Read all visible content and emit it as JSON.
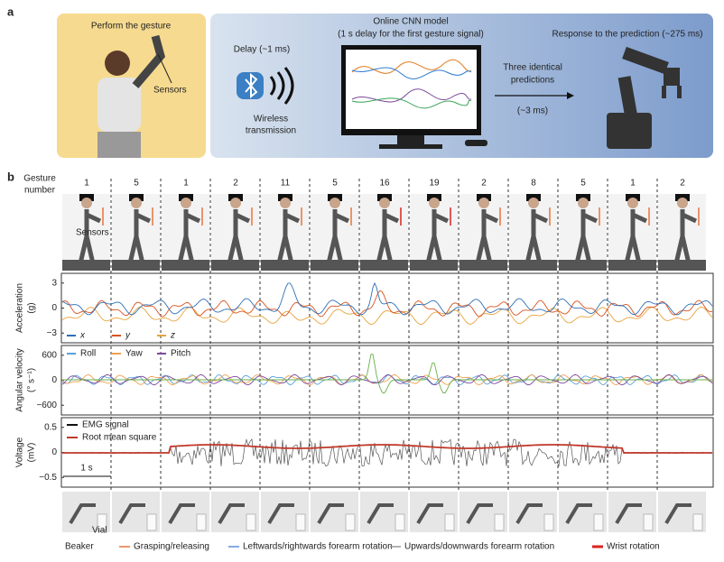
{
  "panel_a": {
    "label": "a",
    "gesture": {
      "title": "Perform the gesture",
      "sensors": "Sensors"
    },
    "wireless": {
      "delay": "Delay (~1 ms)",
      "caption_1": "Wireless",
      "caption_2": "transmission"
    },
    "model": {
      "title": "Online CNN model",
      "subtitle": "(1 s delay for the first gesture signal)"
    },
    "transfer": {
      "label_1": "Three identical",
      "label_2": "predictions",
      "time": "(~3 ms)"
    },
    "response": "Response to the prediction (~275 ms)"
  },
  "panel_b": {
    "label": "b",
    "row_label_1": "Gesture",
    "row_label_2": "number",
    "gestures": [
      "1",
      "5",
      "1",
      "2",
      "11",
      "5",
      "16",
      "19",
      "2",
      "8",
      "5",
      "1",
      "2"
    ],
    "sensors_label": "Sensors",
    "acceleration": {
      "ylabel_1": "Acceleration",
      "ylabel_2": "(g)",
      "ticks": [
        "3",
        "0",
        "−3"
      ],
      "legend": [
        "x",
        "y",
        "z"
      ]
    },
    "angular": {
      "ylabel_1": "Angular velocity",
      "ylabel_2": "(° s⁻¹)",
      "ticks": [
        "600",
        "0",
        "−600"
      ],
      "legend": [
        "Roll",
        "Yaw",
        "Pitch"
      ]
    },
    "voltage": {
      "ylabel_1": "Voltage",
      "ylabel_2": "(mV)",
      "ticks": [
        "0.5",
        "0",
        "−0.5"
      ],
      "legend": [
        "EMG signal",
        "Root mean square"
      ],
      "scale_bar": "1 s"
    },
    "vial": "Vial",
    "beaker": "Beaker",
    "legend": [
      "Grasping/releasing",
      "Leftwards/rightwards forearm rotation",
      "Upwards/downwards forearm rotation",
      "Wrist rotation"
    ]
  }
}
